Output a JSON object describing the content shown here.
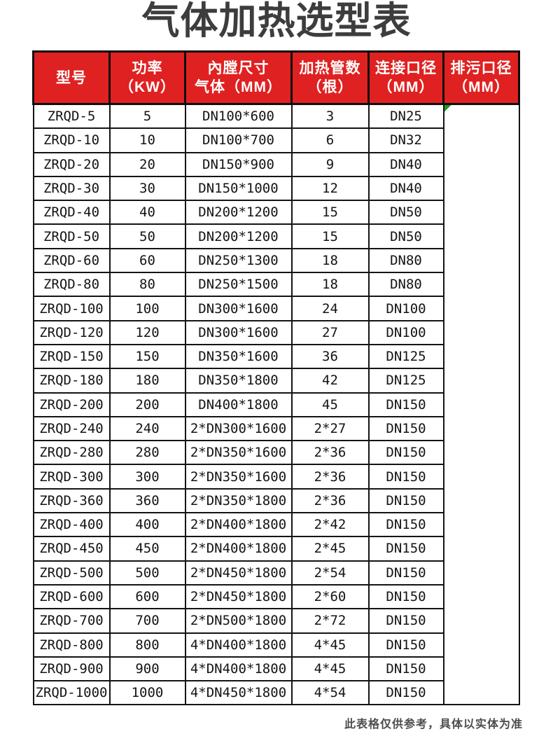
{
  "page": {
    "title": "气体加热选型表",
    "footnote": "此表格仅供参考，具体以实体为准"
  },
  "colors": {
    "header_bg": "#e02121",
    "header_text": "#ffffff",
    "border": "#141414",
    "title_text": "#3d3d3d",
    "marker_green": "#1d9b1d"
  },
  "icons": {
    "corner_marker": "green-corner-marker-icon"
  },
  "table": {
    "columns": [
      {
        "id": "model",
        "line1": "型号",
        "line2": ""
      },
      {
        "id": "power",
        "line1": "功率",
        "line2": "（KW）"
      },
      {
        "id": "chamber",
        "line1": "內膛尺寸",
        "line2": "气体（MM）"
      },
      {
        "id": "tubes",
        "line1": "加热管数",
        "line2": "（根）"
      },
      {
        "id": "connection",
        "line1": "连接口径",
        "line2": "（MM）"
      },
      {
        "id": "drain",
        "line1": "排污口径",
        "line2": "（MM）"
      }
    ],
    "rows": [
      [
        "ZRQD-5",
        "5",
        "DN100*600",
        "3",
        "DN25"
      ],
      [
        "ZRQD-10",
        "10",
        "DN100*700",
        "6",
        "DN32"
      ],
      [
        "ZRQD-20",
        "20",
        "DN150*900",
        "9",
        "DN40"
      ],
      [
        "ZRQD-30",
        "30",
        "DN150*1000",
        "12",
        "DN40"
      ],
      [
        "ZRQD-40",
        "40",
        "DN200*1200",
        "15",
        "DN50"
      ],
      [
        "ZRQD-50",
        "50",
        "DN200*1200",
        "15",
        "DN50"
      ],
      [
        "ZRQD-60",
        "60",
        "DN250*1300",
        "18",
        "DN80"
      ],
      [
        "ZRQD-80",
        "80",
        "DN250*1500",
        "18",
        "DN80"
      ],
      [
        "ZRQD-100",
        "100",
        "DN300*1600",
        "24",
        "DN100"
      ],
      [
        "ZRQD-120",
        "120",
        "DN300*1600",
        "27",
        "DN100"
      ],
      [
        "ZRQD-150",
        "150",
        "DN350*1600",
        "36",
        "DN125"
      ],
      [
        "ZRQD-180",
        "180",
        "DN350*1800",
        "42",
        "DN125"
      ],
      [
        "ZRQD-200",
        "200",
        "DN400*1800",
        "45",
        "DN150"
      ],
      [
        "ZRQD-240",
        "240",
        "2*DN300*1600",
        "2*27",
        "DN150"
      ],
      [
        "ZRQD-280",
        "280",
        "2*DN350*1600",
        "2*36",
        "DN150"
      ],
      [
        "ZRQD-300",
        "300",
        "2*DN350*1600",
        "2*36",
        "DN150"
      ],
      [
        "ZRQD-360",
        "360",
        "2*DN350*1800",
        "2*36",
        "DN150"
      ],
      [
        "ZRQD-400",
        "400",
        "2*DN400*1800",
        "2*42",
        "DN150"
      ],
      [
        "ZRQD-450",
        "450",
        "2*DN400*1800",
        "2*45",
        "DN150"
      ],
      [
        "ZRQD-500",
        "500",
        "2*DN450*1800",
        "2*54",
        "DN150"
      ],
      [
        "ZRQD-600",
        "600",
        "2*DN450*1800",
        "2*60",
        "DN150"
      ],
      [
        "ZRQD-700",
        "700",
        "2*DN500*1800",
        "2*72",
        "DN150"
      ],
      [
        "ZRQD-800",
        "800",
        "4*DN400*1800",
        "4*45",
        "DN150"
      ],
      [
        "ZRQD-900",
        "900",
        "4*DN400*1800",
        "4*45",
        "DN150"
      ],
      [
        "ZRQD-1000",
        "1000",
        "4*DN450*1800",
        "4*54",
        "DN150"
      ]
    ],
    "drain_cell_value": ""
  }
}
